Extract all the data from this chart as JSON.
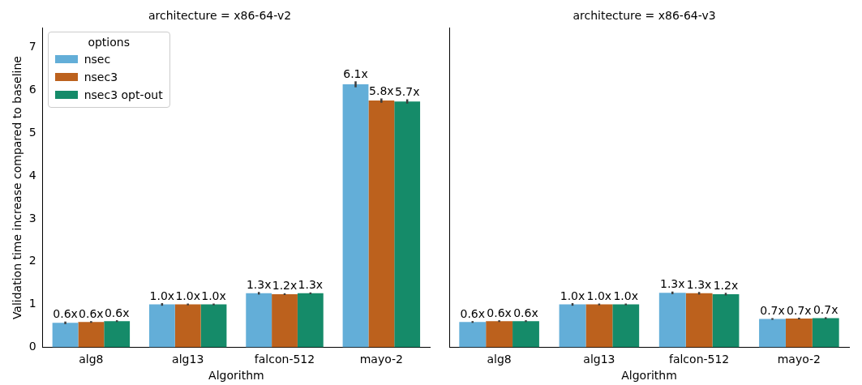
{
  "chart_data": [
    {
      "type": "bar",
      "title": "architecture = x86-64-v2",
      "xlabel": "Algorithm",
      "ylabel": "Validation time increase compared to baseline",
      "legend_title": "options",
      "legend": "top left",
      "grid": false,
      "categories": [
        "alg8",
        "alg13",
        "falcon-512",
        "mayo-2"
      ],
      "ylim": [
        0,
        7.45
      ],
      "yticks": [
        0,
        1,
        2,
        3,
        4,
        5,
        6,
        7
      ],
      "series": [
        {
          "name": "nsec",
          "color": "#63aed8",
          "values": [
            0.57,
            1.0,
            1.26,
            6.14
          ],
          "errors": [
            0.03,
            0.03,
            0.03,
            0.07
          ],
          "value_labels": [
            "0.6x",
            "1.0x",
            "1.3x",
            "6.1x"
          ]
        },
        {
          "name": "nsec3",
          "color": "#bc611d",
          "values": [
            0.59,
            1.0,
            1.24,
            5.76
          ],
          "errors": [
            0.02,
            0.02,
            0.02,
            0.05
          ],
          "value_labels": [
            "0.6x",
            "1.0x",
            "1.2x",
            "5.8x"
          ]
        },
        {
          "name": "nsec3 opt-out",
          "color": "#158b69",
          "values": [
            0.61,
            1.0,
            1.26,
            5.74
          ],
          "errors": [
            0.02,
            0.02,
            0.02,
            0.05
          ],
          "value_labels": [
            "0.6x",
            "1.0x",
            "1.3x",
            "5.7x"
          ]
        }
      ]
    },
    {
      "type": "bar",
      "title": "architecture = x86-64-v3",
      "xlabel": "Algorithm",
      "grid": false,
      "tick_labels": "x",
      "categories": [
        "alg8",
        "alg13",
        "falcon-512",
        "mayo-2"
      ],
      "ylim": [
        0,
        7.45
      ],
      "yticks": [
        0,
        1,
        2,
        3,
        4,
        5,
        6,
        7
      ],
      "series": [
        {
          "color": "#63aed8",
          "values": [
            0.59,
            1.0,
            1.27,
            0.66
          ],
          "errors": [
            0.02,
            0.03,
            0.03,
            0.02
          ],
          "value_labels": [
            "0.6x",
            "1.0x",
            "1.3x",
            "0.7x"
          ]
        },
        {
          "color": "#bc611d",
          "values": [
            0.61,
            1.0,
            1.26,
            0.67
          ],
          "errors": [
            0.02,
            0.02,
            0.03,
            0.02
          ],
          "value_labels": [
            "0.6x",
            "1.0x",
            "1.3x",
            "0.7x"
          ]
        },
        {
          "color": "#158b69",
          "values": [
            0.61,
            1.0,
            1.24,
            0.68
          ],
          "errors": [
            0.02,
            0.02,
            0.03,
            0.02
          ],
          "value_labels": [
            "0.6x",
            "1.0x",
            "1.2x",
            "0.7x"
          ]
        }
      ]
    }
  ]
}
